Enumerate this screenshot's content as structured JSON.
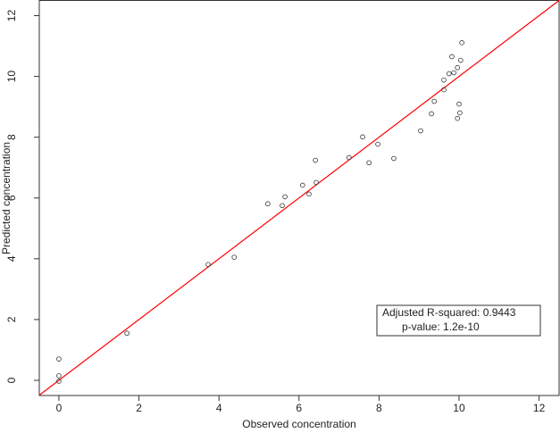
{
  "chart_data": {
    "type": "scatter",
    "xlabel": "Observed concentration",
    "ylabel": "Predicted concentration",
    "x": [
      0,
      0,
      0,
      1.7,
      3.73,
      4.38,
      5.22,
      5.58,
      5.65,
      6.09,
      6.25,
      6.41,
      6.43,
      7.25,
      7.59,
      7.75,
      7.97,
      8.37,
      9.04,
      9.31,
      9.38,
      9.62,
      9.62,
      9.75,
      9.82,
      9.87,
      9.96,
      10.0,
      10.02,
      9.96,
      10.07,
      10.04
    ],
    "values": [
      0.7,
      0.15,
      -0.03,
      1.55,
      3.81,
      4.05,
      5.81,
      5.75,
      6.04,
      6.42,
      6.13,
      7.24,
      6.51,
      7.33,
      8.01,
      7.16,
      7.77,
      7.3,
      8.21,
      8.77,
      9.18,
      9.88,
      9.56,
      10.09,
      10.65,
      10.12,
      10.29,
      9.09,
      8.8,
      8.62,
      11.11,
      10.53
    ],
    "color": "#333333",
    "reference_line": {
      "x": [
        -0.49,
        12.5
      ],
      "y": [
        -0.49,
        12.5
      ],
      "color": "#ff0000"
    },
    "annotations": [
      "Adjusted R-squared: 0.9443",
      "p-value: 1.2e-10"
    ],
    "xlim": [
      -0.49,
      12.5
    ],
    "ylim": [
      -0.5,
      12.5
    ],
    "xticks": [
      0,
      2,
      4,
      6,
      8,
      10,
      12
    ],
    "yticks": [
      0,
      2,
      4,
      6,
      8,
      10,
      12
    ]
  }
}
